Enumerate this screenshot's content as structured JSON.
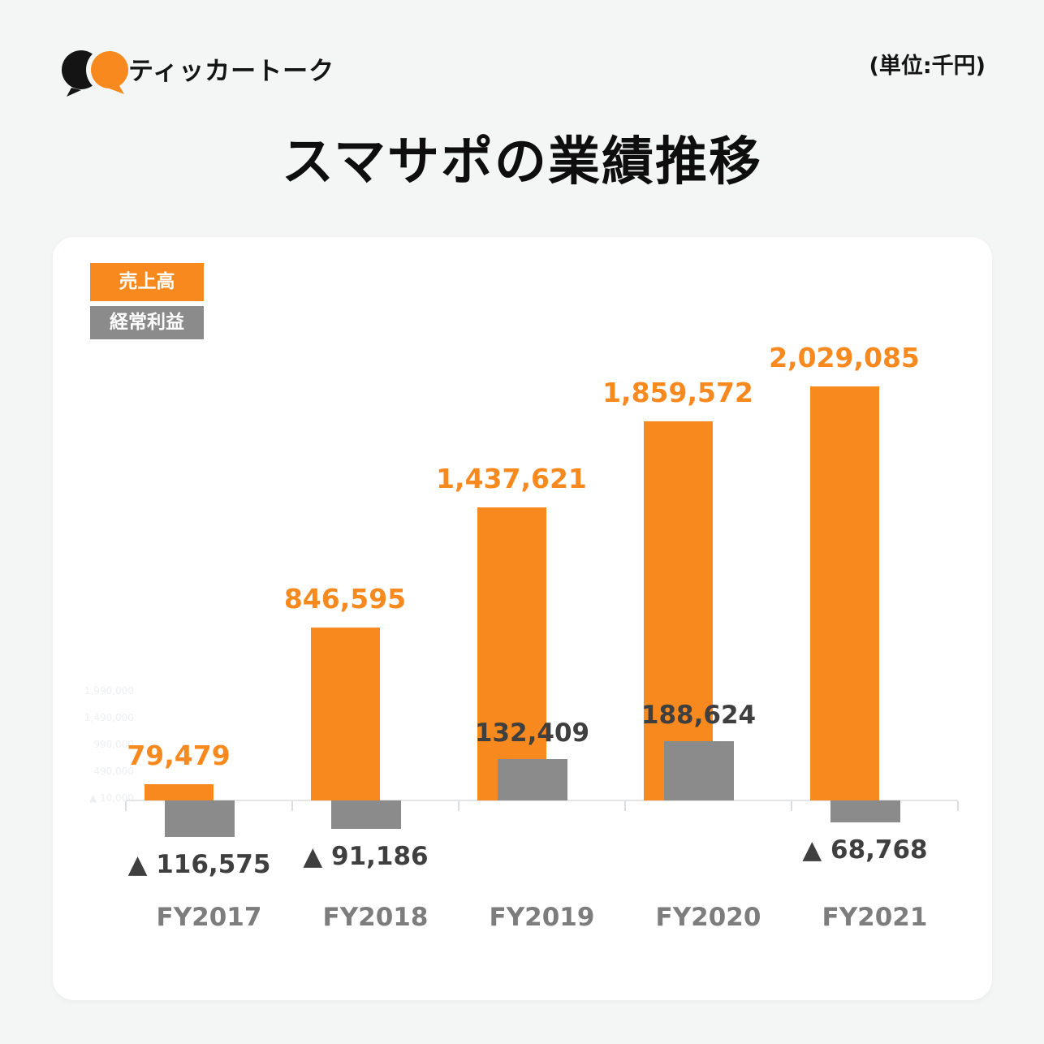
{
  "header": {
    "brand": "ティッカートーク",
    "unit_note": "(単位:千円)"
  },
  "title": "スマサポの業績推移",
  "legend": {
    "revenue_label": "売上高",
    "profit_label": "経常利益"
  },
  "colors": {
    "revenue": "#F7891E",
    "profit": "#8B8B8B",
    "profit_text": "#3F3F3F",
    "category_text": "#7D7D7D",
    "background": "#F4F6F5",
    "card": "#FFFFFF"
  },
  "chart_data": {
    "type": "bar",
    "title": "スマサポの業績推移",
    "unit": "千円",
    "negative_marker": "▲",
    "categories": [
      "FY2017",
      "FY2018",
      "FY2019",
      "FY2020",
      "FY2021"
    ],
    "series": [
      {
        "name": "売上高",
        "color": "#F7891E",
        "values": [
          79479,
          846595,
          1437621,
          1859572,
          2029085
        ],
        "labels": [
          "79,479",
          "846,595",
          "1,437,621",
          "1,859,572",
          "2,029,085"
        ]
      },
      {
        "name": "経常利益",
        "color": "#8B8B8B",
        "values": [
          -116575,
          -91186,
          132409,
          188624,
          -68768
        ],
        "labels": [
          "▲ 116,575",
          "▲ 91,186",
          "132,409",
          "188,624",
          "▲ 68,768"
        ]
      }
    ],
    "y_axis_faint_ticks": [
      "1,990,000",
      "1,490,000",
      "990,000",
      "490,000",
      "▲ 10,000"
    ],
    "legend_position": "top-left",
    "grid": false
  }
}
